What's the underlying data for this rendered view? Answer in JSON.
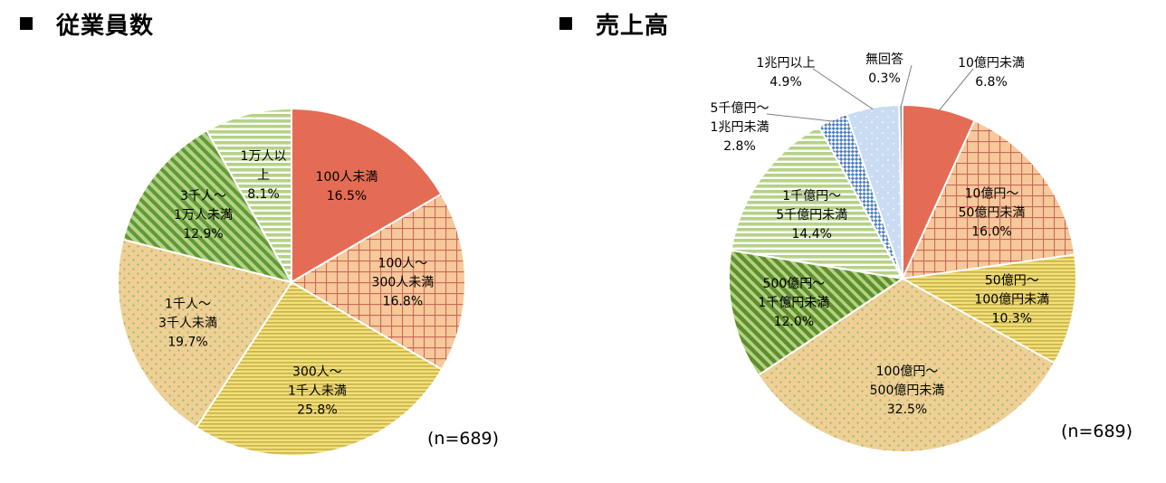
{
  "left_section": {
    "title": "従業員数",
    "n_label": "(n=689)"
  },
  "right_section": {
    "title": "売上高",
    "n_label": "(n=689)"
  },
  "colors": {
    "salmon": "#e46c55",
    "peach": "#f6c89a",
    "yellow": "#f2e07a",
    "tan": "#f0cf97",
    "green": "#8fbf5a",
    "light_green": "#b5d286",
    "dark_green": "#5e8f2c",
    "blue": "#4d7fc0",
    "light_blue": "#c9dcf2",
    "gray": "#8e8e8e"
  },
  "chart_data": [
    {
      "type": "pie",
      "title": "従業員数",
      "slices": [
        {
          "lines": [
            "100人未満"
          ],
          "value": 16.5,
          "value_label": "16.5%",
          "pattern": "solid-salmon"
        },
        {
          "lines": [
            "100人～",
            "300人未満"
          ],
          "value": 16.8,
          "value_label": "16.8%",
          "pattern": "grid-peach"
        },
        {
          "lines": [
            "300人～",
            "1千人未満"
          ],
          "value": 25.8,
          "value_label": "25.8%",
          "pattern": "hstripe-yellow"
        },
        {
          "lines": [
            "1千人～",
            "3千人未満"
          ],
          "value": 19.7,
          "value_label": "19.7%",
          "pattern": "dots-tan"
        },
        {
          "lines": [
            "3千人～",
            "1万人未満"
          ],
          "value": 12.9,
          "value_label": "12.9%",
          "pattern": "diag-green"
        },
        {
          "lines": [
            "1万人以",
            "上"
          ],
          "value": 8.1,
          "value_label": "8.1%",
          "pattern": "hstripe-lightgreen"
        }
      ]
    },
    {
      "type": "pie",
      "title": "売上高",
      "slices": [
        {
          "lines": [
            "10億円未満"
          ],
          "value": 6.8,
          "value_label": "6.8%",
          "pattern": "solid-salmon"
        },
        {
          "lines": [
            "10億円～",
            "50億円未満"
          ],
          "value": 16.0,
          "value_label": "16.0%",
          "pattern": "grid-peach"
        },
        {
          "lines": [
            "50億円～",
            "100億円未満"
          ],
          "value": 10.3,
          "value_label": "10.3%",
          "pattern": "hstripe-yellow"
        },
        {
          "lines": [
            "100億円～",
            "500億円未満"
          ],
          "value": 32.5,
          "value_label": "32.5%",
          "pattern": "dots-tan"
        },
        {
          "lines": [
            "500億円～",
            "1千億円未満"
          ],
          "value": 12.0,
          "value_label": "12.0%",
          "pattern": "diag-darkgreen"
        },
        {
          "lines": [
            "1千億円～",
            "5千億円未満"
          ],
          "value": 14.4,
          "value_label": "14.4%",
          "pattern": "hstripe-lightgreen"
        },
        {
          "lines": [
            "5千億円～",
            "1兆円未満"
          ],
          "value": 2.8,
          "value_label": "2.8%",
          "pattern": "check-blue"
        },
        {
          "lines": [
            "1兆円以上"
          ],
          "value": 4.9,
          "value_label": "4.9%",
          "pattern": "dots-lightblue"
        },
        {
          "lines": [
            "無回答"
          ],
          "value": 0.3,
          "value_label": "0.3%",
          "pattern": "solid-gray"
        }
      ]
    }
  ]
}
